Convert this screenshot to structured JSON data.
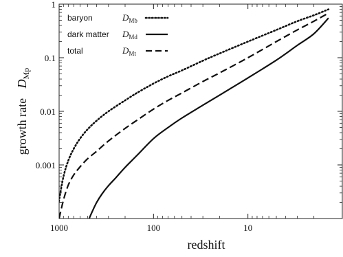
{
  "chart_data": {
    "type": "line",
    "xlabel": "redshift",
    "ylabel": "growth rate",
    "ylabel_symbol": "D",
    "ylabel_subscript": "Mp",
    "x_scale": "log",
    "x_reversed": true,
    "y_scale": "log",
    "xlim": [
      1000,
      1.0
    ],
    "ylim": [
      0.0001,
      1
    ],
    "x_ticks": [
      {
        "value": 1000,
        "label": "1000"
      },
      {
        "value": 100,
        "label": "100"
      },
      {
        "value": 10,
        "label": "10"
      }
    ],
    "y_ticks": [
      {
        "value": 1,
        "label": "1"
      },
      {
        "value": 0.1,
        "label": "0.1"
      },
      {
        "value": 0.01,
        "label": "0.01"
      },
      {
        "value": 0.001,
        "label": "0.001"
      }
    ],
    "legend": {
      "placement": "top-left",
      "entries": [
        {
          "label": "baryon",
          "symbol": "D",
          "subscript": "Mb",
          "style": "dotted"
        },
        {
          "label": "dark matter",
          "symbol": "D",
          "subscript": "Md",
          "style": "solid"
        },
        {
          "label": "total",
          "symbol": "D",
          "subscript": "Mt",
          "style": "dashed"
        }
      ]
    },
    "series": [
      {
        "name": "baryon",
        "style": "dotted",
        "x": [
          1100,
          1000,
          900,
          800,
          700,
          600,
          500,
          400,
          300,
          200,
          150,
          100,
          70,
          50,
          30,
          20,
          10,
          5,
          3,
          2,
          1.4
        ],
        "y": [
          8e-05,
          0.00022,
          0.0006,
          0.0012,
          0.002,
          0.0031,
          0.0046,
          0.0067,
          0.01,
          0.016,
          0.022,
          0.033,
          0.045,
          0.058,
          0.088,
          0.12,
          0.2,
          0.33,
          0.48,
          0.62,
          0.8
        ]
      },
      {
        "name": "dark matter",
        "style": "solid",
        "x": [
          480,
          450,
          400,
          350,
          300,
          250,
          200,
          150,
          100,
          70,
          50,
          30,
          20,
          10,
          5,
          3,
          2,
          1.4
        ],
        "y": [
          0.0001,
          0.00013,
          0.0002,
          0.00029,
          0.00041,
          0.00058,
          0.0009,
          0.0015,
          0.0031,
          0.005,
          0.0075,
          0.013,
          0.02,
          0.042,
          0.09,
          0.17,
          0.28,
          0.55
        ]
      },
      {
        "name": "total",
        "style": "dashed",
        "x": [
          1000,
          900,
          800,
          700,
          600,
          500,
          400,
          300,
          200,
          150,
          100,
          70,
          50,
          30,
          20,
          10,
          5,
          3,
          2,
          1.4
        ],
        "y": [
          0.0001,
          0.00022,
          0.00042,
          0.00065,
          0.00092,
          0.0013,
          0.0018,
          0.0028,
          0.0048,
          0.0068,
          0.011,
          0.016,
          0.022,
          0.036,
          0.052,
          0.1,
          0.2,
          0.33,
          0.48,
          0.68
        ]
      }
    ]
  }
}
